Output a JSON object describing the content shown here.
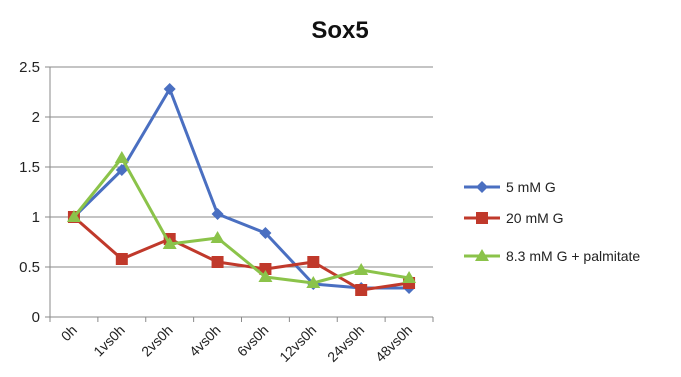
{
  "chart_data": {
    "type": "line",
    "title": "Sox5",
    "categories": [
      "0h",
      "1vs0h",
      "2vs0h",
      "4vs0h",
      "6vs0h",
      "12vs0h",
      "24vs0h",
      "48vs0h"
    ],
    "ylim": [
      0,
      2.5
    ],
    "yticks": [
      "0",
      "0.5",
      "1",
      "1.5",
      "2",
      "2.5"
    ],
    "grid": true,
    "legend_position": "right",
    "series": [
      {
        "name": "5 mM G",
        "color": "#4a6fc1",
        "marker": "diamond",
        "values": [
          1.0,
          1.47,
          2.28,
          1.03,
          0.84,
          0.33,
          0.29,
          0.29
        ]
      },
      {
        "name": "20 mM G",
        "color": "#c0392b",
        "marker": "square",
        "values": [
          1.0,
          0.58,
          0.78,
          0.55,
          0.48,
          0.55,
          0.27,
          0.34
        ]
      },
      {
        "name": "8.3 mM G + palmitate",
        "color": "#8bc34a",
        "marker": "triangle",
        "values": [
          1.0,
          1.59,
          0.73,
          0.79,
          0.4,
          0.34,
          0.47,
          0.39
        ]
      }
    ]
  }
}
